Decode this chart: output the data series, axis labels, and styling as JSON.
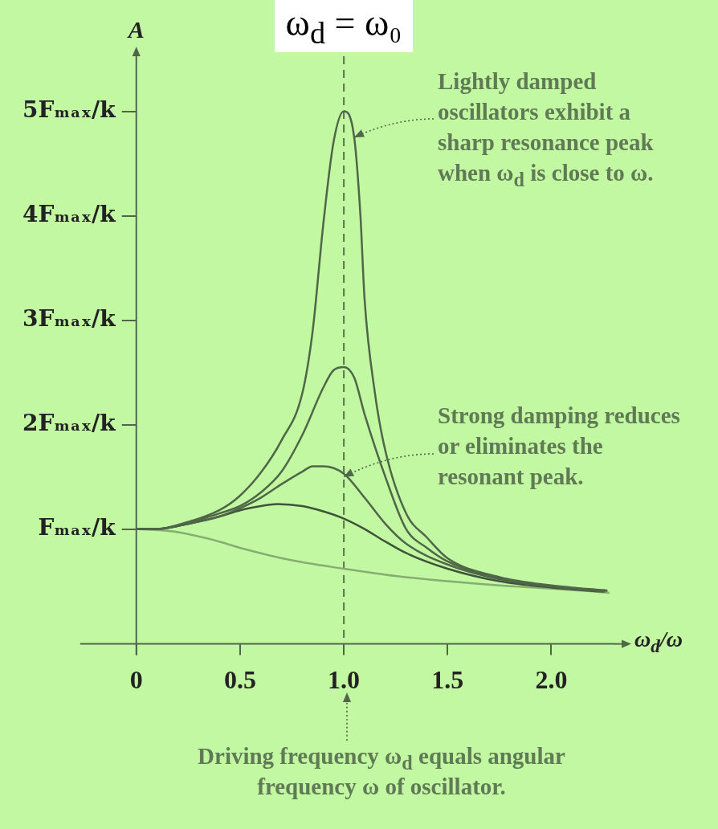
{
  "chart_data": {
    "type": "line",
    "xlabel": "ω$_{d}$/ω",
    "ylabel": "A",
    "xlim": [
      0,
      2.3
    ],
    "ylim": [
      -0.1,
      5.45
    ],
    "xticks": [
      {
        "value": 0,
        "label": "0"
      },
      0.5,
      {
        "value": 1,
        "label": "1.0"
      },
      1.5,
      {
        "value": 2,
        "label": "2.0"
      }
    ],
    "yticks": [
      {
        "value": 1,
        "label": "Fₘₐₓ/k"
      },
      {
        "value": 2,
        "label": "2Fₘₐₓ/k"
      },
      {
        "value": 3,
        "label": "3Fₘₐₓ/k"
      },
      {
        "value": 4,
        "label": "4Fₘₐₓ/k"
      },
      {
        "value": 5,
        "label": "5Fₘₐₓ/k"
      }
    ],
    "grid": false,
    "legend": false,
    "marker": "none",
    "line_style": "solid",
    "ref_lines": [
      {
        "axis": "x",
        "value": 1,
        "label": "ω$_{d}$ = ω₀",
        "line_style": "dashed",
        "color": "#5c7254"
      }
    ],
    "annotations": [
      {
        "text": "Lightly damped oscillators exhibit a sharp resonance peak when ω$_{d}$ is close to ω.",
        "x": 1.05,
        "y": 4.75
      },
      {
        "text": "Strong damping reduces or eliminates the resonant peak.",
        "x": 1.0,
        "y": 1.5
      },
      "Driving frequency ω$_{d}$ equals angular frequency ω of oscillator."
    ],
    "series": [
      {
        "color": "#4f6648",
        "x": [
          0,
          0.1,
          0.2,
          0.4,
          0.5,
          0.6,
          0.7,
          0.8,
          0.85,
          0.9,
          0.95,
          1.0,
          1.05,
          1.08,
          1.1,
          1.15,
          1.2,
          1.3,
          1.4,
          1.5,
          1.75,
          2.0,
          2.27
        ],
        "values": [
          1,
          1,
          1.04,
          1.18,
          1.32,
          1.54,
          1.85,
          2.3,
          2.9,
          3.9,
          4.7,
          5.0,
          4.75,
          4.0,
          3.2,
          2.3,
          1.75,
          1.15,
          0.92,
          0.72,
          0.54,
          0.46,
          0.41
        ]
      },
      {
        "color": "#4f6648",
        "x": [
          0,
          0.1,
          0.2,
          0.4,
          0.5,
          0.6,
          0.7,
          0.8,
          0.9,
          0.95,
          1.0,
          1.05,
          1.1,
          1.2,
          1.3,
          1.4,
          1.5,
          1.75,
          2.0,
          2.26
        ],
        "values": [
          1,
          1,
          1.03,
          1.15,
          1.22,
          1.35,
          1.55,
          1.9,
          2.35,
          2.52,
          2.55,
          2.45,
          2.1,
          1.5,
          1.0,
          0.82,
          0.69,
          0.53,
          0.45,
          0.4
        ]
      },
      {
        "color": "#4f6648",
        "x": [
          0,
          0.1,
          0.2,
          0.4,
          0.5,
          0.6,
          0.7,
          0.8,
          0.85,
          0.9,
          1.0,
          1.1,
          1.2,
          1.3,
          1.5,
          1.75,
          2.0,
          2.27
        ],
        "values": [
          1,
          1,
          1.03,
          1.12,
          1.2,
          1.3,
          1.43,
          1.55,
          1.6,
          1.6,
          1.53,
          1.3,
          1.05,
          0.86,
          0.66,
          0.52,
          0.45,
          0.41
        ]
      },
      {
        "color": "#3e5438",
        "x": [
          0,
          0.1,
          0.2,
          0.4,
          0.5,
          0.6,
          0.68,
          0.8,
          0.9,
          1.0,
          1.1,
          1.2,
          1.3,
          1.5,
          1.75,
          2.0,
          2.25
        ],
        "values": [
          1,
          1,
          1.03,
          1.12,
          1.18,
          1.22,
          1.24,
          1.22,
          1.17,
          1.1,
          1.0,
          0.88,
          0.77,
          0.62,
          0.5,
          0.44,
          0.4
        ]
      },
      {
        "color": "#86ad72",
        "x": [
          0,
          0.1,
          0.2,
          0.4,
          0.5,
          0.75,
          1.0,
          1.25,
          1.5,
          1.75,
          2.0,
          2.28
        ],
        "values": [
          1,
          0.99,
          0.97,
          0.88,
          0.82,
          0.7,
          0.62,
          0.55,
          0.5,
          0.46,
          0.43,
          0.39
        ]
      }
    ]
  }
}
